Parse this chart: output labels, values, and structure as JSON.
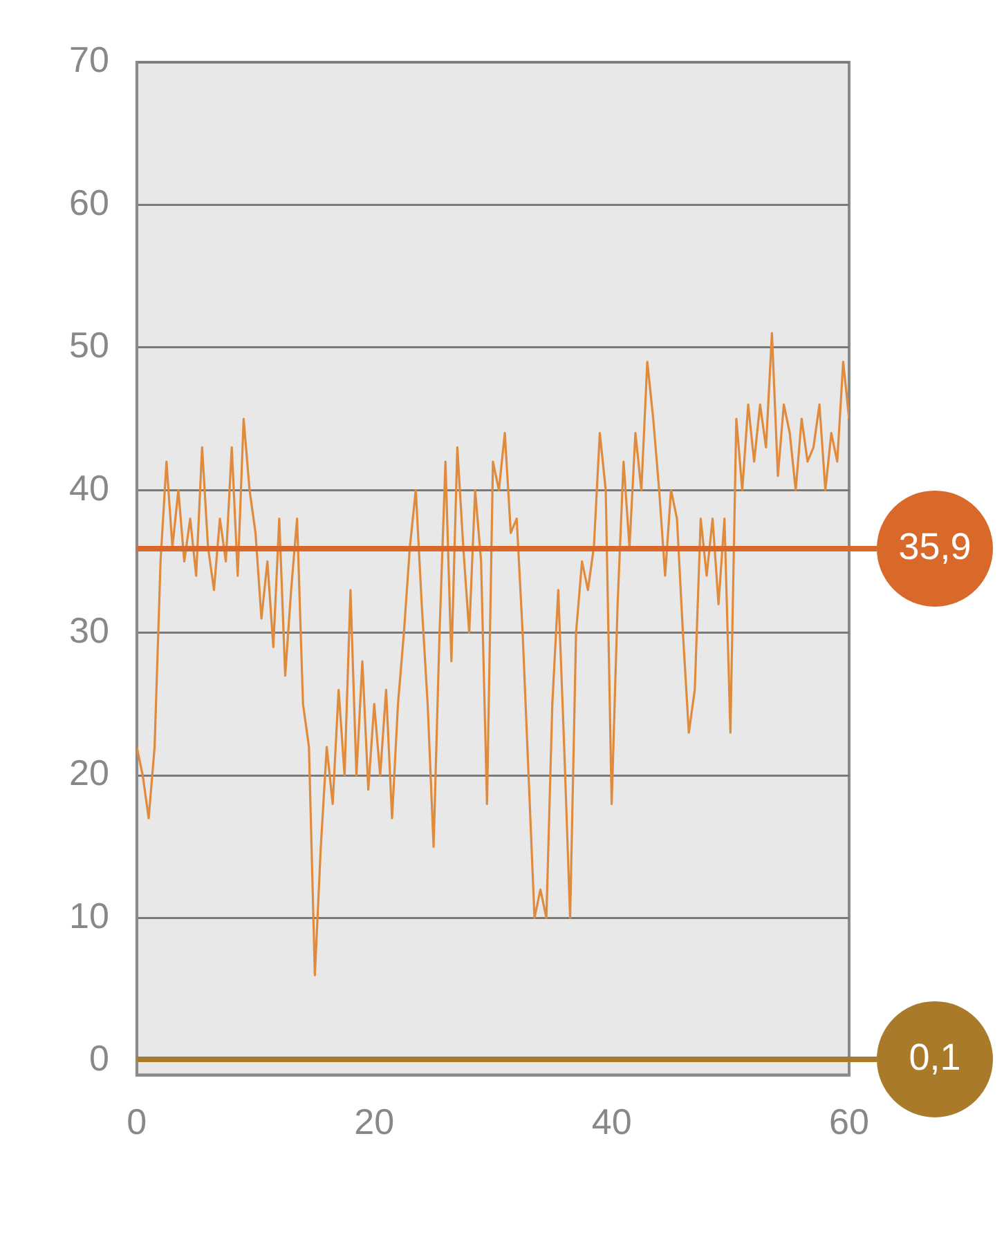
{
  "chart_data": {
    "type": "line",
    "x": [
      0,
      0.5,
      1,
      1.5,
      2,
      2.5,
      3,
      3.5,
      4,
      4.5,
      5,
      5.5,
      6,
      6.5,
      7,
      7.5,
      8,
      8.5,
      9,
      9.5,
      10,
      10.5,
      11,
      11.5,
      12,
      12.5,
      13,
      13.5,
      14,
      14.5,
      15,
      15.5,
      16,
      16.5,
      17,
      17.5,
      18,
      18.5,
      19,
      19.5,
      20,
      20.5,
      21,
      21.5,
      22,
      22.5,
      23,
      23.5,
      24,
      24.5,
      25,
      25.5,
      26,
      26.5,
      27,
      27.5,
      28,
      28.5,
      29,
      29.5,
      30,
      30.5,
      31,
      31.5,
      32,
      32.5,
      33,
      33.5,
      34,
      34.5,
      35,
      35.5,
      36,
      36.5,
      37,
      37.5,
      38,
      38.5,
      39,
      39.5,
      40,
      40.5,
      41,
      41.5,
      42,
      42.5,
      43,
      43.5,
      44,
      44.5,
      45,
      45.5,
      46,
      46.5,
      47,
      47.5,
      48,
      48.5,
      49,
      49.5,
      50,
      50.5,
      51,
      51.5,
      52,
      52.5,
      53,
      53.5,
      54,
      54.5,
      55,
      55.5,
      56,
      56.5,
      57,
      57.5,
      58,
      58.5,
      59,
      59.5,
      60
    ],
    "series": [
      {
        "color": "#e08a3c",
        "values": [
          22,
          20,
          17,
          22,
          35,
          42,
          36,
          40,
          35,
          38,
          34,
          43,
          36,
          33,
          38,
          35,
          43,
          34,
          45,
          40,
          37,
          31,
          35,
          29,
          38,
          27,
          33,
          38,
          25,
          22,
          6,
          15,
          22,
          18,
          26,
          20,
          33,
          20,
          28,
          19,
          25,
          20,
          26,
          17,
          25,
          30,
          36,
          40,
          32,
          25,
          15,
          30,
          42,
          28,
          43,
          36,
          30,
          40,
          35,
          18,
          42,
          40,
          44,
          37,
          38,
          30,
          20,
          10,
          12,
          10,
          25,
          33,
          22,
          10,
          30,
          35,
          33,
          36,
          44,
          40,
          18,
          32,
          42,
          36,
          44,
          40,
          49,
          45,
          40,
          34,
          40,
          38,
          30,
          23,
          26,
          38,
          34,
          38,
          32,
          38,
          23,
          45,
          40,
          46,
          42,
          46,
          43,
          51,
          41,
          46,
          44,
          40,
          45,
          42,
          43,
          46,
          40,
          44,
          42,
          49,
          45
        ]
      }
    ],
    "xlim": [
      0,
      60
    ],
    "xticks": [
      0,
      20,
      40,
      60
    ],
    "ylim": [
      -1,
      70
    ],
    "yticks": [
      0,
      10,
      20,
      30,
      40,
      50,
      60,
      70
    ],
    "grid": "y",
    "legend": false,
    "marker": "none",
    "line_style": "solid",
    "ref_lines": [
      {
        "axis": "y",
        "value": 35.9,
        "label": "35,9",
        "color": "#d9692a"
      },
      {
        "axis": "y",
        "value": 0.1,
        "label": "0,1",
        "color": "#a87a2a"
      }
    ]
  }
}
